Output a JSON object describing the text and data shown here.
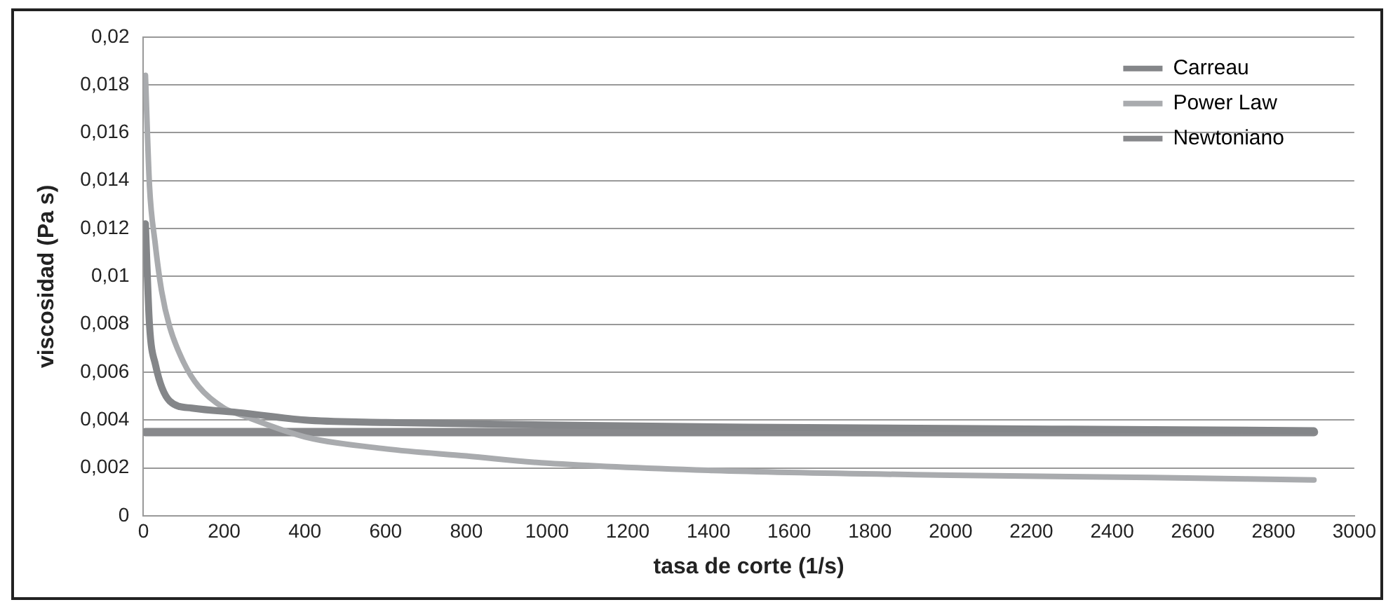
{
  "chart_data": {
    "type": "line",
    "xlabel": "tasa de corte (1/s)",
    "ylabel": "viscosidad (Pa s)",
    "xlim": [
      0,
      3000
    ],
    "xticks": [
      0,
      200,
      400,
      600,
      800,
      1000,
      1200,
      1400,
      1600,
      1800,
      2000,
      2200,
      2400,
      2600,
      2800,
      3000
    ],
    "ylim": [
      0,
      0.02
    ],
    "yticks": [
      {
        "value": 0,
        "label": "0"
      },
      {
        "value": 0.002,
        "label": "0,002"
      },
      {
        "value": 0.004,
        "label": "0,004"
      },
      {
        "value": 0.006,
        "label": "0,006"
      },
      {
        "value": 0.008,
        "label": "0,008"
      },
      {
        "value": 0.01,
        "label": "0,01"
      },
      {
        "value": 0.012,
        "label": "0,012"
      },
      {
        "value": 0.014,
        "label": "0,014"
      },
      {
        "value": 0.016,
        "label": "0,016"
      },
      {
        "value": 0.018,
        "label": "0,018"
      },
      {
        "value": 0.02,
        "label": "0,02"
      }
    ],
    "grid": "y",
    "legend": "top right",
    "marker": "none",
    "line_style": "solid",
    "series": [
      {
        "name": "Carreau",
        "color": "#848689",
        "x": [
          5,
          15,
          30,
          65,
          120,
          245,
          400,
          600,
          1000,
          1500,
          2000,
          2500,
          2900
        ],
        "values": [
          0.0122,
          0.008,
          0.0063,
          0.0048,
          0.0045,
          0.0043,
          0.004,
          0.0039,
          0.0038,
          0.0037,
          0.00365,
          0.0036,
          0.00356
        ]
      },
      {
        "name": "Power Law",
        "color": "#a9abae",
        "x": [
          5,
          15,
          29,
          45,
          65,
          100,
          137,
          200,
          245,
          400,
          600,
          800,
          1000,
          1400,
          2000,
          2500,
          2900
        ],
        "values": [
          0.0184,
          0.0138,
          0.0114,
          0.0094,
          0.0079,
          0.0064,
          0.0054,
          0.0045,
          0.0042,
          0.0033,
          0.0028,
          0.0025,
          0.0022,
          0.0019,
          0.0017,
          0.0016,
          0.0015
        ]
      },
      {
        "name": "Newtoniano",
        "color": "#88898c",
        "x": [
          5,
          2900
        ],
        "values": [
          0.0035,
          0.0035
        ]
      }
    ]
  }
}
